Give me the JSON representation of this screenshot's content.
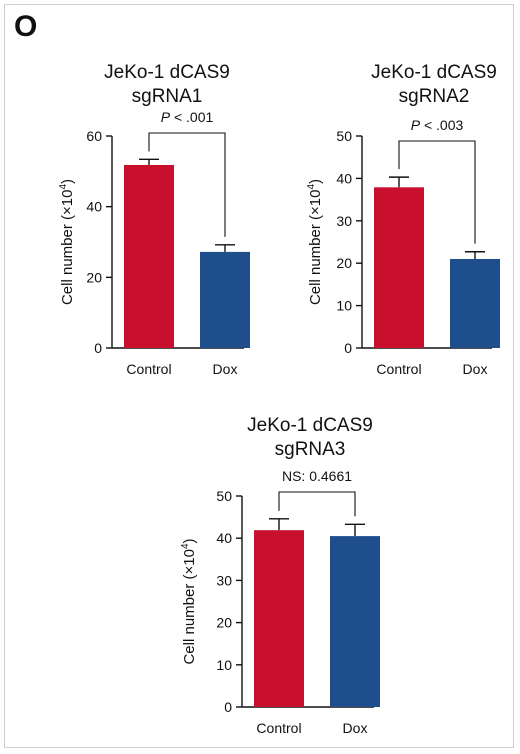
{
  "panel_label": "O",
  "colors": {
    "control": "#c8102e",
    "dox": "#1f4e8c"
  },
  "chart_data": [
    {
      "type": "bar",
      "title_lines": [
        "JeKo-1 dCAS9",
        "sgRNA1"
      ],
      "categories": [
        "Control",
        "Dox"
      ],
      "values": [
        51.8,
        27.2
      ],
      "errors": [
        1.6,
        2.0
      ],
      "ylabel_main": "Cell number (×10",
      "ylabel_sup": "4",
      "ylabel_close": ")",
      "ylim": [
        0,
        60
      ],
      "yticks": [
        0,
        20,
        40,
        60
      ],
      "significance": {
        "p_italic": "P",
        "rest": " < .001"
      }
    },
    {
      "type": "bar",
      "title_lines": [
        "JeKo-1 dCAS9",
        "sgRNA2"
      ],
      "categories": [
        "Control",
        "Dox"
      ],
      "values": [
        37.9,
        21.0
      ],
      "errors": [
        2.4,
        1.7
      ],
      "ylabel_main": "Cell number (×10",
      "ylabel_sup": "4",
      "ylabel_close": ")",
      "ylim": [
        0,
        50
      ],
      "yticks": [
        0,
        10,
        20,
        30,
        40,
        50
      ],
      "significance": {
        "p_italic": "P",
        "rest": " < .003"
      }
    },
    {
      "type": "bar",
      "title_lines": [
        "JeKo-1 dCAS9",
        "sgRNA3"
      ],
      "categories": [
        "Control",
        "Dox"
      ],
      "values": [
        41.9,
        40.5
      ],
      "errors": [
        2.7,
        2.8
      ],
      "ylabel_main": "Cell number (×10",
      "ylabel_sup": "4",
      "ylabel_close": ")",
      "ylim": [
        0,
        50
      ],
      "yticks": [
        0,
        10,
        20,
        30,
        40,
        50
      ],
      "significance": {
        "p_italic": "",
        "rest": "NS: 0.4661"
      }
    }
  ]
}
